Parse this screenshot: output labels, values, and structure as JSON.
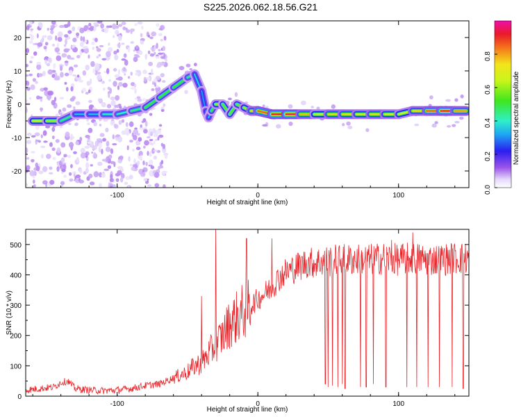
{
  "title": "S225.2026.062.18.56.G21",
  "chart_data": [
    {
      "type": "heatmap",
      "xlabel": "Height of straight line (km)",
      "ylabel": "Frequency (Hz)",
      "xlim": [
        -165,
        150
      ],
      "ylim": [
        -25,
        25
      ],
      "x_ticks": [
        -100,
        0,
        100
      ],
      "y_ticks": [
        -20,
        -10,
        0,
        10,
        20
      ],
      "ridge": {
        "x": [
          -160,
          -150,
          -140,
          -130,
          -120,
          -110,
          -100,
          -90,
          -80,
          -70,
          -60,
          -50,
          -45,
          -40,
          -37,
          -35,
          -33,
          -30,
          -25,
          -20,
          -15,
          -10,
          -5,
          0,
          10,
          20,
          30,
          40,
          50,
          60,
          70,
          80,
          90,
          100,
          110,
          120,
          130,
          140,
          148
        ],
        "frequency": [
          -5,
          -5,
          -5,
          -3,
          -3,
          -3,
          -3,
          -2,
          -1,
          2,
          5,
          8,
          9,
          4,
          -2,
          -4,
          -2,
          0,
          0,
          -3,
          0,
          -1,
          -2,
          -2,
          -3,
          -3,
          -3,
          -3,
          -3,
          -3,
          -3,
          -3,
          -3,
          -3,
          -2,
          -2,
          -2,
          -2,
          -2
        ],
        "amplitude": [
          0.6,
          0.7,
          0.5,
          0.4,
          0.3,
          0.4,
          0.4,
          0.4,
          0.5,
          0.5,
          0.5,
          0.5,
          0.4,
          0.3,
          0.3,
          0.3,
          0.4,
          0.6,
          0.6,
          0.5,
          0.6,
          0.5,
          0.7,
          0.8,
          0.9,
          0.95,
          0.95,
          0.6,
          0.7,
          0.8,
          0.7,
          0.7,
          0.8,
          0.6,
          0.7,
          0.8,
          0.9,
          0.9,
          0.7
        ]
      },
      "noise_region_xlim": [
        -165,
        -65
      ],
      "colorbar": {
        "label": "Normalized spectral amplitude",
        "ticks": [
          0.0,
          0.2,
          0.4,
          0.6,
          0.8
        ],
        "tick_labels": [
          "0.0",
          "0.2",
          "0.4",
          "0.6",
          "0.8"
        ],
        "range": [
          0,
          1
        ],
        "colormap": "white-purple-blue-cyan-green-yellow-orange-red-magenta"
      }
    },
    {
      "type": "line",
      "xlabel": "Height of straight line (km)",
      "ylabel": "SNR (10 * v/v)",
      "xlim": [
        -165,
        150
      ],
      "ylim": [
        0,
        550
      ],
      "x_ticks": [
        -100,
        0,
        100
      ],
      "y_ticks": [
        0,
        100,
        200,
        300,
        400,
        500
      ],
      "color": "#e8252a",
      "series": [
        {
          "x": [
            -165,
            -155,
            -145,
            -140,
            -135,
            -130,
            -120,
            -110,
            -100,
            -90,
            -80,
            -70,
            -60,
            -50,
            -45,
            -40,
            -35,
            -30,
            -25,
            -20,
            -15,
            -10,
            -5,
            0,
            5,
            10,
            15,
            20,
            25,
            30,
            35,
            40,
            45,
            50,
            60,
            70,
            80,
            90,
            100,
            110,
            120,
            130,
            140,
            150
          ],
          "values": [
            20,
            25,
            30,
            45,
            50,
            25,
            20,
            18,
            20,
            25,
            35,
            40,
            60,
            80,
            100,
            110,
            140,
            170,
            200,
            240,
            260,
            280,
            300,
            320,
            340,
            360,
            390,
            410,
            420,
            430,
            440,
            440,
            445,
            445,
            450,
            450,
            450,
            455,
            450,
            455,
            450,
            450,
            455,
            455
          ]
        }
      ],
      "spikes": [
        {
          "x": -40,
          "value": 330
        },
        {
          "x": -30,
          "value": 550
        },
        {
          "x": -8,
          "value": 520
        },
        {
          "x": 10,
          "value": 520
        },
        {
          "x": 95,
          "value": 515
        },
        {
          "x": 110,
          "value": 540
        }
      ],
      "dropouts": [
        {
          "x": 48,
          "value": 40
        },
        {
          "x": 50,
          "value": 30
        },
        {
          "x": 53,
          "value": 35
        },
        {
          "x": 57,
          "value": 30
        },
        {
          "x": 60,
          "value": 40
        },
        {
          "x": 62,
          "value": 25
        },
        {
          "x": 73,
          "value": 30
        },
        {
          "x": 77,
          "value": 30
        },
        {
          "x": 82,
          "value": 40
        },
        {
          "x": 91,
          "value": 30
        },
        {
          "x": 106,
          "value": 30
        },
        {
          "x": 113,
          "value": 30
        },
        {
          "x": 121,
          "value": 30
        },
        {
          "x": 129,
          "value": 30
        },
        {
          "x": 138,
          "value": 30
        },
        {
          "x": 146,
          "value": 25
        }
      ]
    }
  ]
}
